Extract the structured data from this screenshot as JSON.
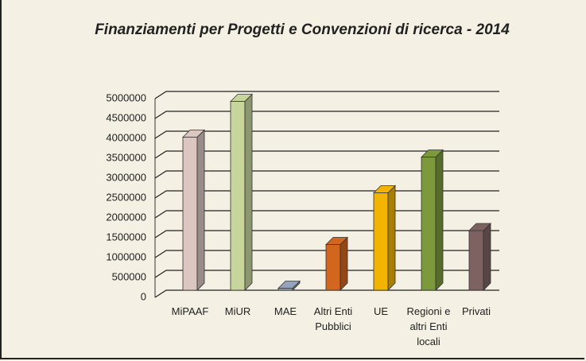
{
  "chart_data": {
    "type": "bar",
    "title": "Finanziamenti per Progetti e Convenzioni di ricerca - 2014",
    "categories": [
      "MiPAAF",
      "MiUR",
      "MAE",
      "Altri Enti Pubblici",
      "UE",
      "Regioni e altri Enti locali",
      "Privati"
    ],
    "values": [
      3850000,
      4750000,
      50000,
      1150000,
      2450000,
      3350000,
      1500000
    ],
    "colors": [
      "#dcc6c2",
      "#c8d69e",
      "#94a4bc",
      "#d2661e",
      "#f2b400",
      "#7c9a3c",
      "#7e6262"
    ],
    "ylim": [
      0,
      5000000
    ],
    "yticks": [
      0,
      500000,
      1000000,
      1500000,
      2000000,
      2500000,
      3000000,
      3500000,
      4000000,
      4500000,
      5000000
    ],
    "grid": true
  }
}
